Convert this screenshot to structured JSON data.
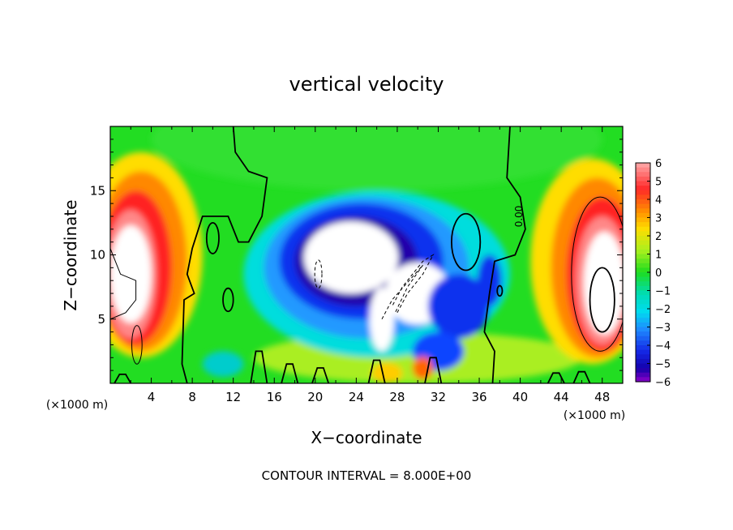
{
  "chart_data": {
    "type": "heatmap",
    "title": "vertical velocity",
    "xlabel": "X−coordinate",
    "ylabel": "Z−coordinate",
    "x_unit": "(×1000 m)",
    "y_unit": "(×1000 m)",
    "xlim": [
      0,
      50
    ],
    "ylim": [
      0,
      20
    ],
    "x_ticks": [
      4,
      8,
      12,
      16,
      20,
      24,
      28,
      32,
      36,
      40,
      44,
      48
    ],
    "x_tick_labels": [
      "4",
      "8",
      "12",
      "16",
      "20",
      "24",
      "28",
      "32",
      "36",
      "40",
      "44",
      "48"
    ],
    "y_ticks": [
      5,
      10,
      15
    ],
    "y_tick_labels": [
      "5",
      "10",
      "15"
    ],
    "colorbar": {
      "levels": [
        6,
        5,
        4,
        3,
        2,
        1,
        0,
        -1,
        -2,
        -3,
        -4,
        -5,
        -6
      ],
      "labels": [
        "6",
        "5",
        "4",
        "3",
        "2",
        "1",
        "0",
        "−1",
        "−2",
        "−3",
        "−4",
        "−5",
        "−6"
      ]
    },
    "contour_label": "0.00",
    "contour_interval_text": "CONTOUR INTERVAL = 8.000E+00",
    "features": [
      {
        "kind": "updraft",
        "x": 3,
        "z": 9,
        "strength": 8
      },
      {
        "kind": "updraft",
        "x": 47,
        "z": 8,
        "strength": 8
      },
      {
        "kind": "downdraft",
        "x": 24,
        "z": 9,
        "strength": -9
      },
      {
        "kind": "downdraft",
        "x": 30,
        "z": 7,
        "strength": -7
      }
    ]
  }
}
